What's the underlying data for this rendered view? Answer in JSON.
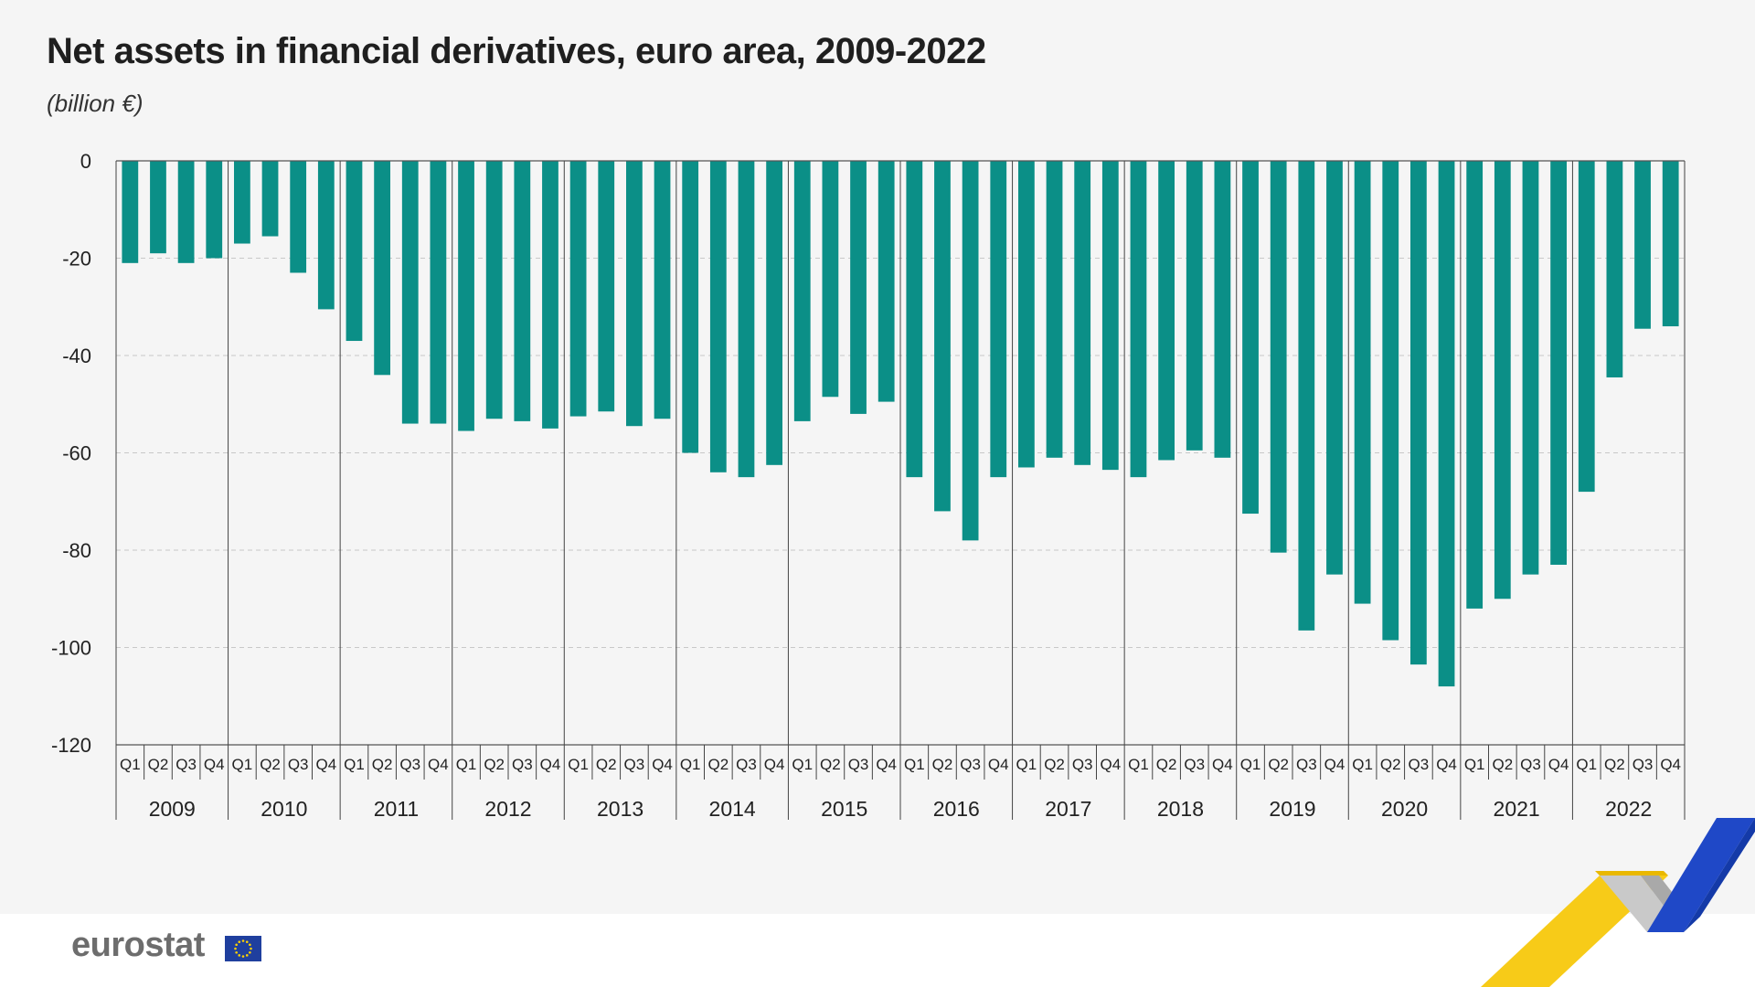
{
  "header": {
    "title": "Net assets in financial derivatives, euro area, 2009-2022",
    "subtitle": "(billion €)"
  },
  "footer": {
    "logo_text": "eurostat"
  },
  "colors": {
    "bar": "#0b8f87",
    "grid": "#c8c8c8",
    "axis": "#555555"
  },
  "chart_data": {
    "type": "bar",
    "title": "Net assets in financial derivatives, euro area, 2009-2022",
    "subtitle": "(billion €)",
    "xlabel": "",
    "ylabel": "",
    "ylim": [
      -120,
      0
    ],
    "yticks": [
      0,
      -20,
      -40,
      -60,
      -80,
      -100,
      -120
    ],
    "grid": true,
    "legend": "none",
    "quarters": [
      "Q1",
      "Q2",
      "Q3",
      "Q4"
    ],
    "years": [
      "2009",
      "2010",
      "2011",
      "2012",
      "2013",
      "2014",
      "2015",
      "2016",
      "2017",
      "2018",
      "2019",
      "2020",
      "2021",
      "2022"
    ],
    "values": [
      -21,
      -19,
      -21,
      -20,
      -17,
      -15.5,
      -23,
      -30.5,
      -37,
      -44,
      -54,
      -54,
      -55.5,
      -53,
      -53.5,
      -55,
      -52.5,
      -51.5,
      -54.5,
      -53,
      -60,
      -64,
      -65,
      -62.5,
      -53.5,
      -48.5,
      -52,
      -49.5,
      -65,
      -72,
      -78,
      -65,
      -63,
      -61,
      -62.5,
      -63.5,
      -65,
      -61.5,
      -59.5,
      -61,
      -72.5,
      -80.5,
      -96.5,
      -85,
      -91,
      -98.5,
      -103.5,
      -108,
      -92,
      -90,
      -85,
      -83,
      -68,
      -44.5,
      -34.5,
      -34
    ]
  }
}
